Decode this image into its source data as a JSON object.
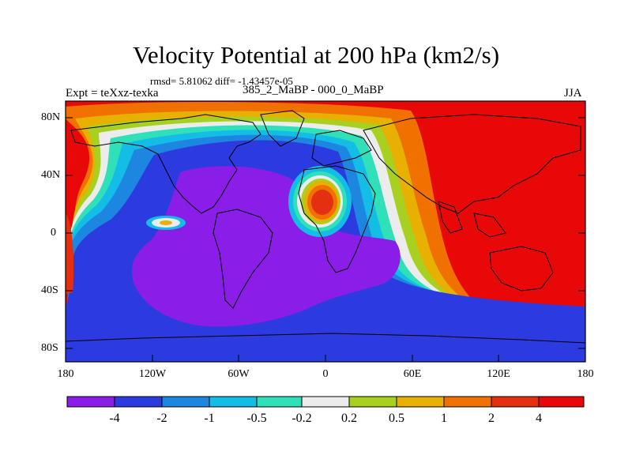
{
  "title": "Velocity Potential at 200 hPa (km2/s)",
  "stats": "rmsd= 5.81062 diff= -1.43457e-05",
  "experiment": "Expt = teXxz-texka",
  "case_label": "385_2_MaBP - 000_0_MaBP",
  "season": "JJA",
  "latitude_labels": [
    "80N",
    "40N",
    "0",
    "40S",
    "80S"
  ],
  "longitude_labels": [
    "180",
    "120W",
    "60W",
    "0",
    "60E",
    "120E",
    "180"
  ],
  "colorbar": {
    "labels": [
      "-4",
      "-2",
      "-1",
      "-0.5",
      "-0.2",
      "0.2",
      "0.5",
      "1",
      "2",
      "4"
    ],
    "colors": [
      "#8a1ee8",
      "#2b3be0",
      "#1c86e0",
      "#14bde6",
      "#2fe0b8",
      "#ececec",
      "#a8d020",
      "#e8b000",
      "#f07000",
      "#e43010",
      "#e80808"
    ]
  }
}
